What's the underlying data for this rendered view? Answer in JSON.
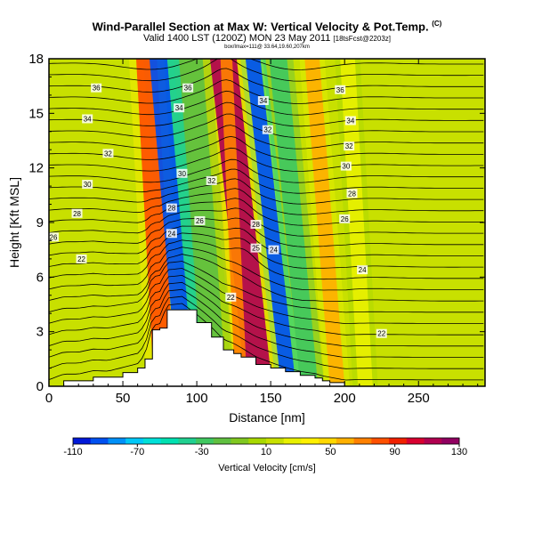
{
  "header": {
    "title": "Wind-Parallel Section at Max W: Vertical Velocity & Pot.Temp.",
    "copyright_mark": "(C)",
    "subtitle": "Valid 1400 LST (1200Z) MON 23 May 2011",
    "run_info": "[18tsFcst@2203z]",
    "section_info": "box/lmax=111@ 33.64,19.60,207km"
  },
  "chart_data": {
    "type": "heatmap",
    "xlabel": "Distance [nm]",
    "ylabel": "Height [Kft MSL]",
    "xlim": [
      0,
      295
    ],
    "ylim": [
      0,
      18
    ],
    "x_ticks": [
      0,
      50,
      100,
      150,
      200,
      250
    ],
    "y_ticks": [
      0,
      3,
      6,
      9,
      12,
      15,
      18
    ],
    "grid": false,
    "colorbar": {
      "label": "Vertical Velocity [cm/s]",
      "levels": [
        -110,
        -100,
        -90,
        -80,
        -70,
        -60,
        -50,
        -40,
        -30,
        -20,
        -10,
        0,
        10,
        20,
        30,
        40,
        50,
        60,
        70,
        80,
        90,
        100,
        110,
        120,
        130
      ],
      "tick_labels": [
        "-110",
        "-70",
        "-30",
        "10",
        "50",
        "90",
        "130"
      ],
      "colors": [
        "#0018d8",
        "#0050f0",
        "#0090f8",
        "#00c8f8",
        "#00e0d8",
        "#00e0b0",
        "#20d090",
        "#40c860",
        "#60c040",
        "#80c820",
        "#a8d800",
        "#c8e000",
        "#e8f000",
        "#fff000",
        "#ffd800",
        "#ffb000",
        "#ff8000",
        "#ff5000",
        "#f02000",
        "#d80030",
        "#b00050",
        "#900060"
      ]
    },
    "background_field_cm_s": 10,
    "velocity_bands": [
      {
        "x_bottom": 78,
        "x_top": 66,
        "width": 14,
        "value": 80
      },
      {
        "x_bottom": 93,
        "x_top": 74,
        "width": 12,
        "value": -100
      },
      {
        "x_bottom": 102,
        "x_top": 84,
        "width": 8,
        "value": -40
      },
      {
        "x_bottom": 112,
        "x_top": 96,
        "width": 16,
        "value": -20
      },
      {
        "x_bottom": 142,
        "x_top": 118,
        "width": 18,
        "value": 110
      },
      {
        "x_bottom": 130,
        "x_top": 120,
        "width": 8,
        "value": 60
      },
      {
        "x_bottom": 162,
        "x_top": 138,
        "width": 10,
        "value": -100
      },
      {
        "x_bottom": 176,
        "x_top": 155,
        "width": 12,
        "value": -30
      },
      {
        "x_bottom": 195,
        "x_top": 178,
        "width": 10,
        "value": 50
      },
      {
        "x_bottom": 214,
        "x_top": 202,
        "width": 10,
        "value": 20
      }
    ],
    "potential_temperature": {
      "label_text": "Pot.Temp.",
      "isentrope_levels": [
        22,
        24,
        26,
        28,
        30,
        32,
        34,
        36
      ],
      "labels": [
        {
          "x": 22,
          "y": 7.0,
          "text": "22"
        },
        {
          "x": 123,
          "y": 4.9,
          "text": "22"
        },
        {
          "x": 225,
          "y": 2.9,
          "text": "22"
        },
        {
          "x": 83,
          "y": 8.4,
          "text": "24"
        },
        {
          "x": 152,
          "y": 7.5,
          "text": "24"
        },
        {
          "x": 212,
          "y": 6.4,
          "text": "24"
        },
        {
          "x": 3,
          "y": 8.2,
          "text": "26"
        },
        {
          "x": 102,
          "y": 9.1,
          "text": "26"
        },
        {
          "x": 140,
          "y": 7.6,
          "text": "25"
        },
        {
          "x": 200,
          "y": 9.2,
          "text": "26"
        },
        {
          "x": 19,
          "y": 9.5,
          "text": "28"
        },
        {
          "x": 83,
          "y": 9.8,
          "text": "28"
        },
        {
          "x": 140,
          "y": 8.9,
          "text": "28"
        },
        {
          "x": 205,
          "y": 10.6,
          "text": "28"
        },
        {
          "x": 26,
          "y": 11.1,
          "text": "30"
        },
        {
          "x": 90,
          "y": 11.7,
          "text": "30"
        },
        {
          "x": 201,
          "y": 12.1,
          "text": "30"
        },
        {
          "x": 40,
          "y": 12.8,
          "text": "32"
        },
        {
          "x": 110,
          "y": 11.3,
          "text": "32"
        },
        {
          "x": 148,
          "y": 14.1,
          "text": "32"
        },
        {
          "x": 203,
          "y": 13.2,
          "text": "32"
        },
        {
          "x": 26,
          "y": 14.7,
          "text": "34"
        },
        {
          "x": 88,
          "y": 15.3,
          "text": "34"
        },
        {
          "x": 204,
          "y": 14.6,
          "text": "34"
        },
        {
          "x": 32,
          "y": 16.4,
          "text": "36"
        },
        {
          "x": 94,
          "y": 16.4,
          "text": "36"
        },
        {
          "x": 145,
          "y": 15.7,
          "text": "34"
        },
        {
          "x": 197,
          "y": 16.3,
          "text": "36"
        }
      ]
    },
    "terrain_profile": {
      "x": [
        0,
        10,
        20,
        30,
        40,
        50,
        60,
        65,
        70,
        75,
        80,
        90,
        100,
        110,
        118,
        125,
        130,
        140,
        150,
        160,
        170,
        180,
        185,
        190,
        200
      ],
      "height": [
        0,
        0.3,
        0.3,
        0.5,
        0.5,
        0.75,
        1.0,
        1.5,
        3.1,
        3.2,
        4.2,
        4.2,
        3.5,
        2.7,
        2.0,
        1.8,
        1.6,
        1.2,
        1.0,
        0.8,
        0.6,
        0.45,
        0.3,
        0.2,
        0
      ]
    }
  }
}
